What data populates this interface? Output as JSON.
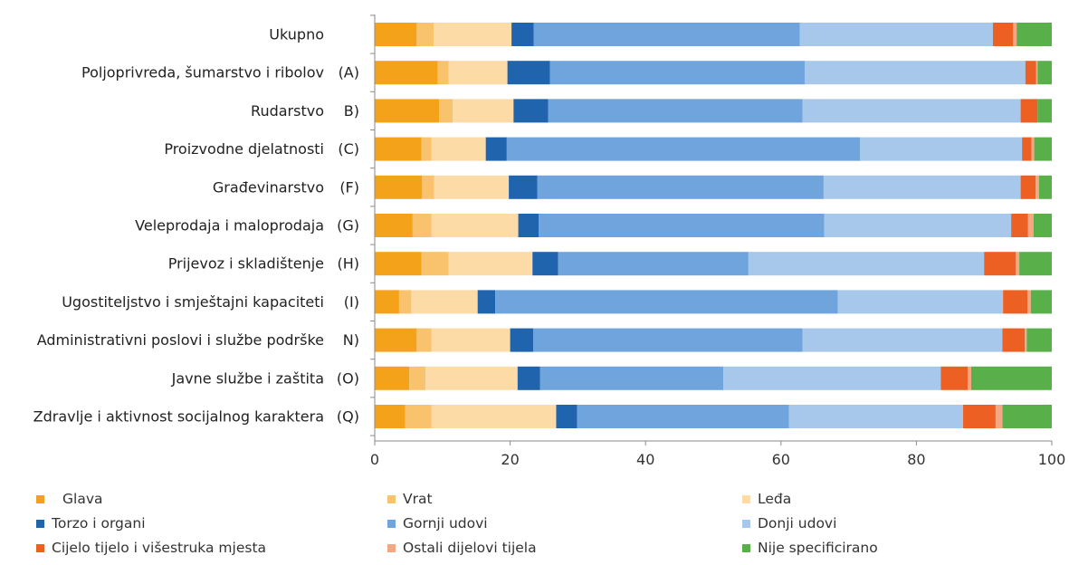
{
  "chart_data": {
    "type": "bar",
    "orientation": "horizontal",
    "stacked": true,
    "xlim": [
      0,
      100
    ],
    "xticks": [
      0,
      20,
      40,
      60,
      80,
      100
    ],
    "grid": false,
    "legend_position": "bottom",
    "categories": [
      {
        "name": "Ukupno",
        "code": ""
      },
      {
        "name": "Poljoprivreda, šumarstvo i ribolov",
        "code": "(A)"
      },
      {
        "name": "Rudarstvo",
        "code": "B)"
      },
      {
        "name": "Proizvodne djelatnosti",
        "code": "(C)"
      },
      {
        "name": "Građevinarstvo",
        "code": "(F)"
      },
      {
        "name": "Veleprodaja i maloprodaja",
        "code": "(G)"
      },
      {
        "name": "Prijevoz i skladištenje",
        "code": "(H)"
      },
      {
        "name": "Ugostiteljstvo i smještajni kapaciteti",
        "code": "(I)"
      },
      {
        "name": "Administrativni poslovi i službe podrške",
        "code": "N)"
      },
      {
        "name": "Javne službe i zaštita",
        "code": "(O)"
      },
      {
        "name": "Zdravlje i aktivnost socijalnog karaktera",
        "code": "(Q)"
      }
    ],
    "series": [
      {
        "name": "Glava",
        "color": "#f5a21b",
        "values": [
          6.2,
          9.3,
          9.5,
          6.9,
          7.0,
          5.6,
          6.9,
          3.6,
          6.2,
          5.1,
          4.5
        ]
      },
      {
        "name": "Vrat",
        "color": "#f9c36d",
        "values": [
          2.5,
          1.6,
          2.0,
          1.5,
          1.8,
          2.8,
          4.0,
          1.8,
          2.2,
          2.4,
          3.9
        ]
      },
      {
        "name": "Leđa",
        "color": "#fcdba7",
        "values": [
          11.5,
          8.7,
          9.0,
          8.0,
          11.0,
          12.8,
          12.4,
          9.8,
          11.6,
          13.6,
          18.4
        ]
      },
      {
        "name": "Torzo i organi",
        "color": "#2164ae",
        "values": [
          3.3,
          6.3,
          5.1,
          3.1,
          4.2,
          3.0,
          3.8,
          2.6,
          3.4,
          3.3,
          3.1
        ]
      },
      {
        "name": "Gornji udovi",
        "color": "#6fa4dc",
        "values": [
          39.3,
          37.6,
          37.6,
          52.2,
          42.3,
          42.2,
          28.1,
          50.6,
          39.8,
          27.1,
          31.3
        ]
      },
      {
        "name": "Donji udovi",
        "color": "#a7c8ea",
        "values": [
          28.5,
          32.6,
          32.2,
          23.9,
          29.1,
          27.6,
          34.8,
          24.4,
          29.5,
          32.1,
          25.7
        ]
      },
      {
        "name": "Cijelo tijelo i višestruka mjesta",
        "color": "#ed6024",
        "values": [
          3.0,
          1.6,
          2.5,
          1.4,
          2.2,
          2.5,
          4.7,
          3.6,
          3.3,
          4.0,
          4.8
        ]
      },
      {
        "name": "Ostali dijelovi tijela",
        "color": "#f3a883",
        "values": [
          0.5,
          0.2,
          0.0,
          0.4,
          0.5,
          0.8,
          0.5,
          0.5,
          0.3,
          0.5,
          1.0
        ]
      },
      {
        "name": "Nije specificirano",
        "color": "#59b04a",
        "values": [
          5.2,
          2.1,
          2.1,
          2.6,
          1.9,
          2.7,
          4.8,
          3.1,
          3.7,
          11.9,
          7.3
        ]
      }
    ]
  },
  "legend_icons": {
    "Glava": "square-swatch",
    "Vrat": "square-swatch",
    "Leđa": "square-swatch",
    "Torzo i organi": "square-swatch",
    "Gornji udovi": "square-swatch",
    "Donji udovi": "square-swatch",
    "Cijelo tijelo i višestruka mjesta": "square-swatch",
    "Ostali dijelovi tijela": "square-swatch",
    "Nije specificirano": "square-swatch"
  }
}
